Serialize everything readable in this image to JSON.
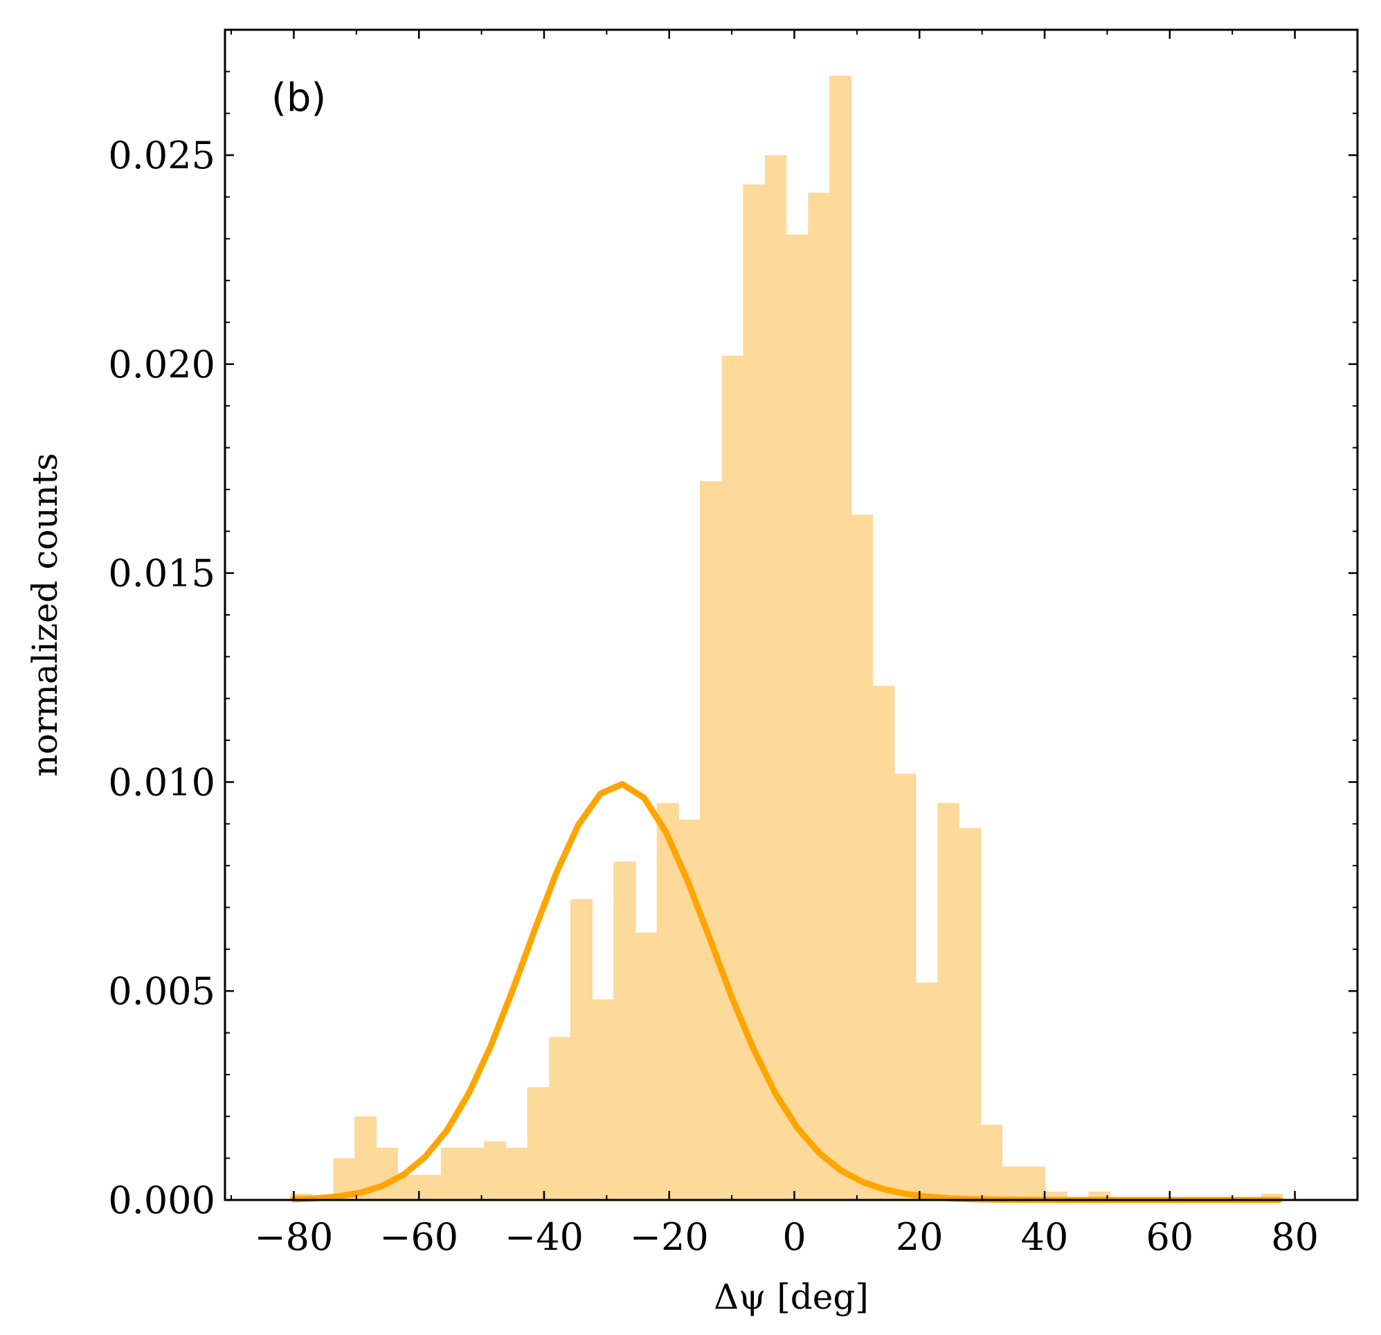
{
  "chart_data": {
    "type": "bar",
    "panel_label": "(b)",
    "xlabel": "Δψ [deg]",
    "ylabel": "normalized counts",
    "xlim": [
      -91,
      90
    ],
    "ylim": [
      0,
      0.028
    ],
    "xticks": [
      -80,
      -60,
      -40,
      -20,
      0,
      20,
      40,
      60,
      80
    ],
    "xtick_labels": [
      "−80",
      "−60",
      "−40",
      "−20",
      "0",
      "20",
      "40",
      "60",
      "80"
    ],
    "yticks": [
      0,
      0.005,
      0.01,
      0.015,
      0.02,
      0.025
    ],
    "ytick_labels": [
      "0.000",
      "0.005",
      "0.010",
      "0.015",
      "0.020",
      "0.025"
    ],
    "grid": false,
    "colors": {
      "bars": "#fdd99a",
      "curve": "#ffa500",
      "frame": "#000000"
    },
    "histogram": {
      "bin_edges": [
        -80.6,
        -77.2,
        -73.7,
        -70.3,
        -66.8,
        -63.4,
        -59.9,
        -56.5,
        -53.0,
        -49.6,
        -46.1,
        -42.7,
        -39.2,
        -35.8,
        -32.3,
        -28.9,
        -25.4,
        -22.0,
        -18.5,
        -15.1,
        -11.6,
        -8.2,
        -4.7,
        -1.3,
        2.2,
        5.6,
        9.1,
        12.5,
        16.0,
        19.4,
        22.9,
        26.3,
        29.8,
        33.2,
        36.7,
        40.1,
        43.6,
        47.0,
        50.5,
        53.9,
        57.4,
        60.8,
        64.3,
        67.7,
        71.2,
        74.6,
        78.1
      ],
      "values": [
        0.00015,
        0,
        0.001,
        0.002,
        0.00125,
        0.0006,
        0.0006,
        0.00125,
        0.00125,
        0.0014,
        0.00125,
        0.0027,
        0.0039,
        0.0072,
        0.0048,
        0.0081,
        0.0064,
        0.0095,
        0.0091,
        0.0172,
        0.0202,
        0.0243,
        0.025,
        0.0231,
        0.0241,
        0.0269,
        0.0164,
        0.0123,
        0.0102,
        0.0052,
        0.0095,
        0.0089,
        0.0018,
        0.0008,
        0.0008,
        0.0002,
        0,
        0.0002,
        0,
        0,
        0,
        0,
        0,
        0,
        0,
        0.00015
      ]
    },
    "series": [
      {
        "type": "line",
        "x": [
          -80,
          -76.5,
          -73,
          -69.5,
          -66,
          -62.5,
          -59,
          -55.5,
          -52,
          -48.5,
          -45,
          -41.5,
          -38,
          -34.5,
          -31,
          -27.5,
          -24,
          -20.5,
          -17,
          -13.5,
          -10,
          -6.5,
          -3,
          0.5,
          4,
          7.5,
          11,
          14.5,
          18,
          21.5,
          25,
          28.5,
          32,
          35.5,
          39,
          42.5,
          46,
          49.5,
          53,
          56.5,
          60,
          63.5,
          67,
          70.5,
          74,
          77.5
        ],
        "y": [
          1.62e-05,
          3.76e-05,
          8.22e-05,
          0.000169,
          0.000328,
          0.0006,
          0.00103,
          0.00167,
          0.00256,
          0.00369,
          0.00503,
          0.00646,
          0.00784,
          0.00898,
          0.00972,
          0.00995,
          0.00962,
          0.0088,
          0.00761,
          0.00625,
          0.00485,
          0.0036,
          0.00254,
          0.00172,
          0.00112,
          0.000703,
          0.000426,
          0.00025,
          0.00014,
          7.46e-05,
          3.78e-05,
          1.82e-05,
          8.3e-06,
          3.6e-06,
          1.5e-06,
          6e-07,
          0,
          0,
          0,
          0,
          0,
          0,
          0,
          0,
          0,
          0
        ]
      }
    ]
  }
}
